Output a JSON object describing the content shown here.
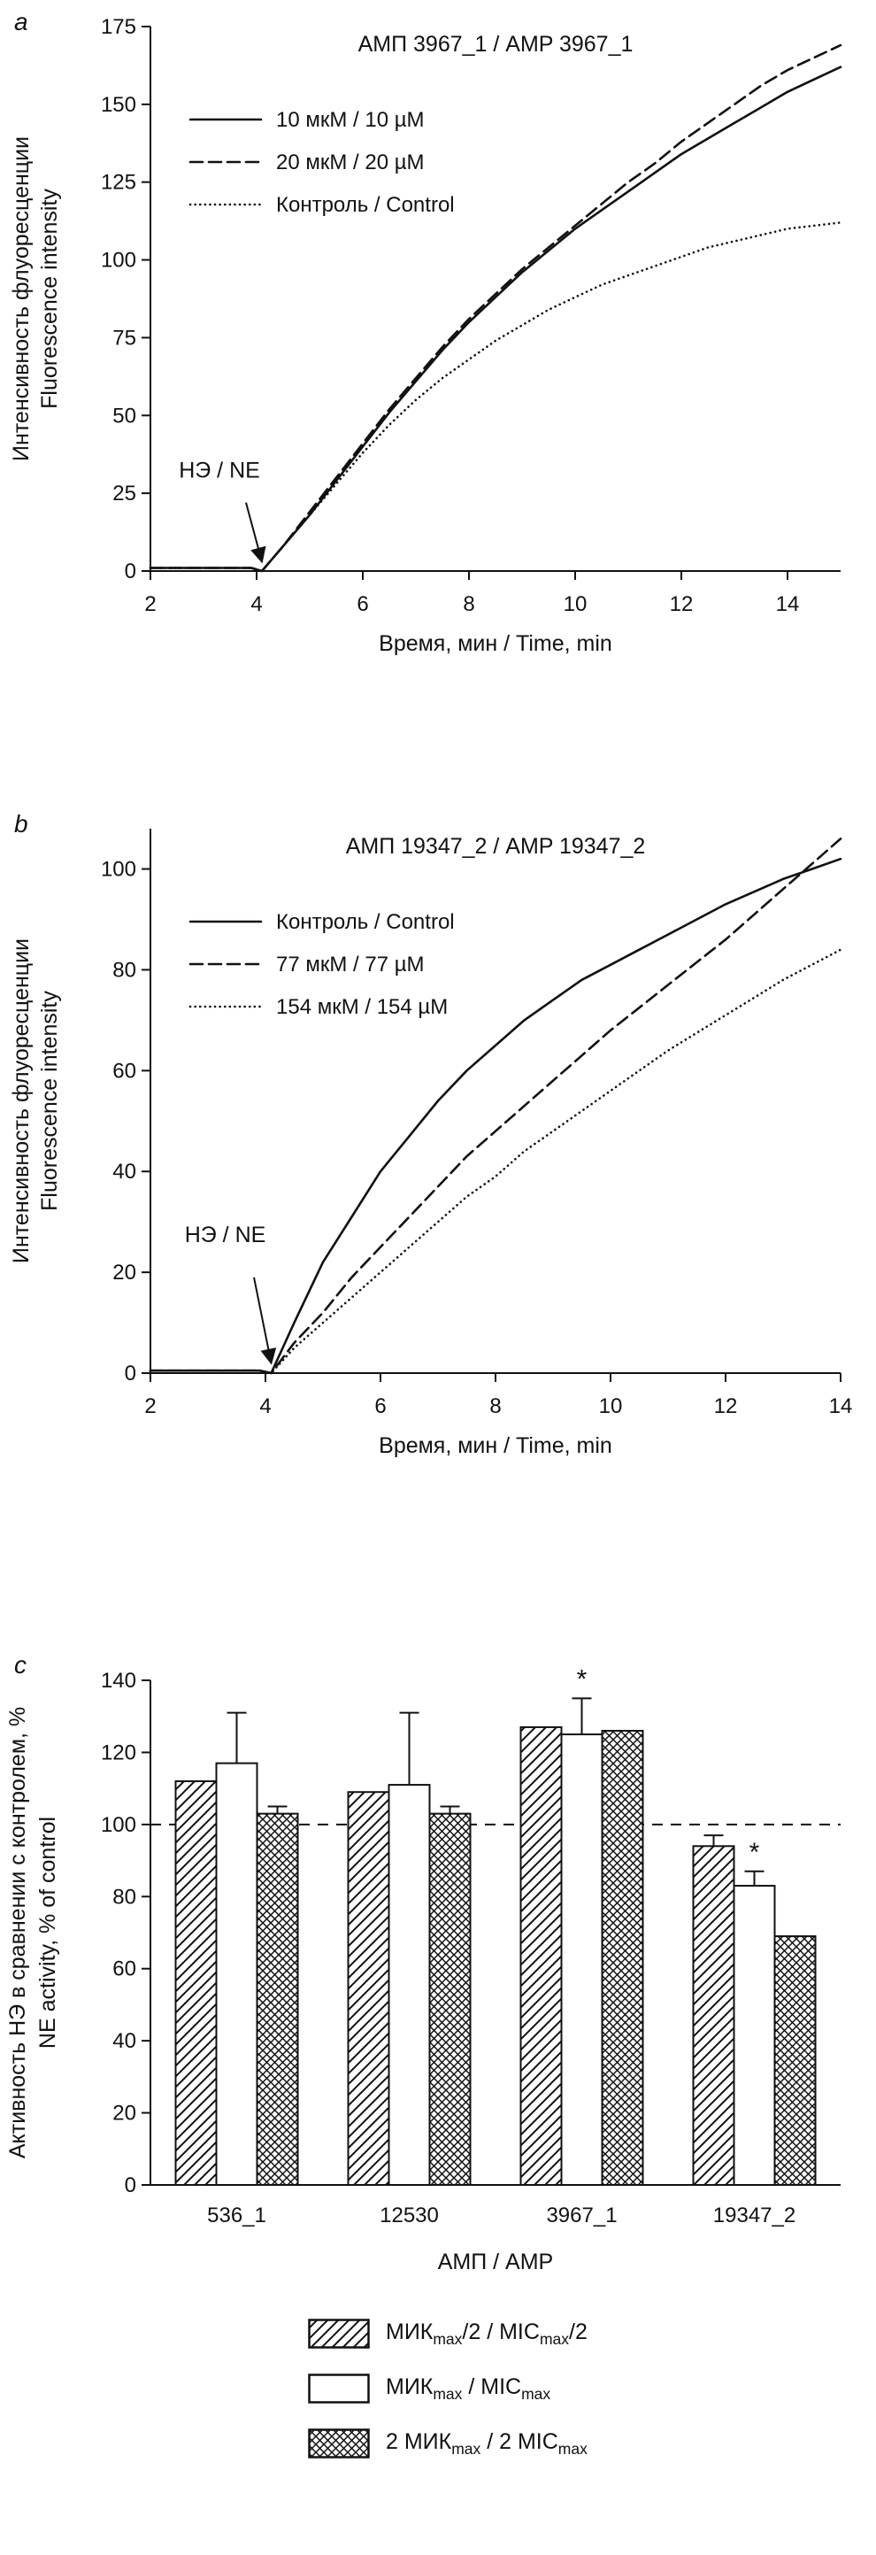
{
  "ink": "#111111",
  "figure": {
    "panels": [
      "a",
      "b",
      "c"
    ]
  },
  "chart_data": [
    {
      "type": "line",
      "panel_label": "a",
      "title": "АМП 3967_1 / AMP 3967_1",
      "xlabel": "Время, мин / Time, min",
      "ylabel_line1": "Интенсивность флуоресценции",
      "ylabel_line2": "Fluorescence intensity",
      "xlim": [
        2,
        15
      ],
      "ylim": [
        0,
        175
      ],
      "xticks": [
        2,
        4,
        6,
        8,
        10,
        12,
        14
      ],
      "yticks": [
        0,
        25,
        50,
        75,
        100,
        125,
        150,
        175
      ],
      "legend_position": "upper-left",
      "grid": false,
      "annotation": {
        "label": "НЭ / NE",
        "text_x": 3.3,
        "text_y": 30,
        "arrow": [
          3.8,
          22,
          4.1,
          3
        ]
      },
      "x": [
        2,
        3,
        3.9,
        4.1,
        4.5,
        5,
        5.5,
        6,
        6.5,
        7,
        7.5,
        8,
        8.5,
        9,
        9.5,
        10,
        10.5,
        11,
        11.5,
        12,
        12.5,
        13,
        13.5,
        14,
        14.5,
        15
      ],
      "series": [
        {
          "name": "10 мкМ / 10 µM",
          "style": "solid",
          "y": [
            1,
            1,
            1,
            0,
            8,
            18,
            29,
            40,
            51,
            61,
            71,
            80,
            88,
            96,
            103,
            110,
            116,
            122,
            128,
            134,
            139,
            144,
            149,
            154,
            158,
            162
          ]
        },
        {
          "name": "20 мкМ / 20 µM",
          "style": "dashed",
          "y": [
            1,
            1,
            1,
            0,
            8,
            19,
            30,
            41,
            52,
            62,
            72,
            81,
            89,
            97,
            104,
            111,
            118,
            125,
            131,
            138,
            144,
            150,
            156,
            161,
            165,
            169
          ]
        },
        {
          "name": "Контроль / Control",
          "style": "dotted",
          "y": [
            1,
            1,
            1,
            0,
            8,
            18,
            28,
            38,
            47,
            55,
            62,
            68,
            74,
            79,
            84,
            88,
            92,
            95,
            98,
            101,
            104,
            106,
            108,
            110,
            111,
            112
          ]
        }
      ]
    },
    {
      "type": "line",
      "panel_label": "b",
      "title": "АМП 19347_2 / AMP 19347_2",
      "xlabel": "Время, мин / Time, min",
      "ylabel_line1": "Интенсивность флуоресценции",
      "ylabel_line2": "Fluorescence intensity",
      "xlim": [
        2,
        14
      ],
      "ylim": [
        0,
        108
      ],
      "xticks": [
        2,
        4,
        6,
        8,
        10,
        12,
        14
      ],
      "yticks": [
        0,
        20,
        40,
        60,
        80,
        100
      ],
      "legend_position": "upper-left",
      "grid": false,
      "annotation": {
        "label": "НЭ / NE",
        "text_x": 3.3,
        "text_y": 26,
        "arrow": [
          3.8,
          19,
          4.1,
          2
        ]
      },
      "x": [
        2,
        3,
        3.9,
        4.1,
        4.5,
        5,
        5.5,
        6,
        6.5,
        7,
        7.5,
        8,
        8.5,
        9,
        9.5,
        10,
        10.5,
        11,
        11.5,
        12,
        12.5,
        13,
        13.5,
        14
      ],
      "series": [
        {
          "name": "Контроль / Control",
          "style": "solid",
          "y": [
            0.5,
            0.5,
            0.5,
            0,
            10,
            22,
            31,
            40,
            47,
            54,
            60,
            65,
            70,
            74,
            78,
            81,
            84,
            87,
            90,
            93,
            95.5,
            98,
            100,
            102
          ]
        },
        {
          "name": "77 мкМ / 77 µM",
          "style": "dashed",
          "y": [
            0.5,
            0.5,
            0.5,
            0,
            6,
            12,
            19,
            25,
            31,
            37,
            43,
            48,
            53,
            58,
            63,
            68,
            72.5,
            77,
            81.5,
            86,
            91,
            96,
            101,
            106
          ]
        },
        {
          "name": "154 мкМ / 154 µM",
          "style": "dotted",
          "y": [
            0.5,
            0.5,
            0.5,
            0,
            5,
            10,
            15,
            20,
            25,
            30,
            35,
            39,
            44,
            48,
            52,
            56,
            60,
            64,
            67.5,
            71,
            74.5,
            78,
            81,
            84
          ]
        }
      ]
    },
    {
      "type": "bar",
      "panel_label": "c",
      "title": "",
      "xlabel": "АМП / AMP",
      "ylabel_line1": "Активность НЭ в сравнении с контролем, %",
      "ylabel_line2": "NE activity, % of control",
      "ylim": [
        0,
        140
      ],
      "yticks": [
        0,
        20,
        40,
        60,
        80,
        100,
        120,
        140
      ],
      "reference_line": 100,
      "sig_symbol": "*",
      "categories": [
        "536_1",
        "12530",
        "3967_1",
        "19347_2"
      ],
      "series": [
        {
          "name": "МИК[max]/2 / MIC[max]/2",
          "hatch": "diagonal",
          "values": [
            112,
            109,
            127,
            94
          ],
          "errors": [
            0,
            0,
            0,
            3
          ],
          "sig": [
            false,
            false,
            false,
            false
          ]
        },
        {
          "name": "МИК[max] / MIC[max]",
          "hatch": "none",
          "values": [
            117,
            111,
            125,
            83
          ],
          "errors": [
            14,
            20,
            10,
            4
          ],
          "sig": [
            false,
            false,
            true,
            true
          ]
        },
        {
          "name": "2 МИК[max] / 2 MIC[max]",
          "hatch": "cross",
          "values": [
            103,
            103,
            126,
            69
          ],
          "errors": [
            2,
            2,
            0,
            0
          ],
          "sig": [
            false,
            false,
            false,
            false
          ]
        }
      ]
    }
  ]
}
